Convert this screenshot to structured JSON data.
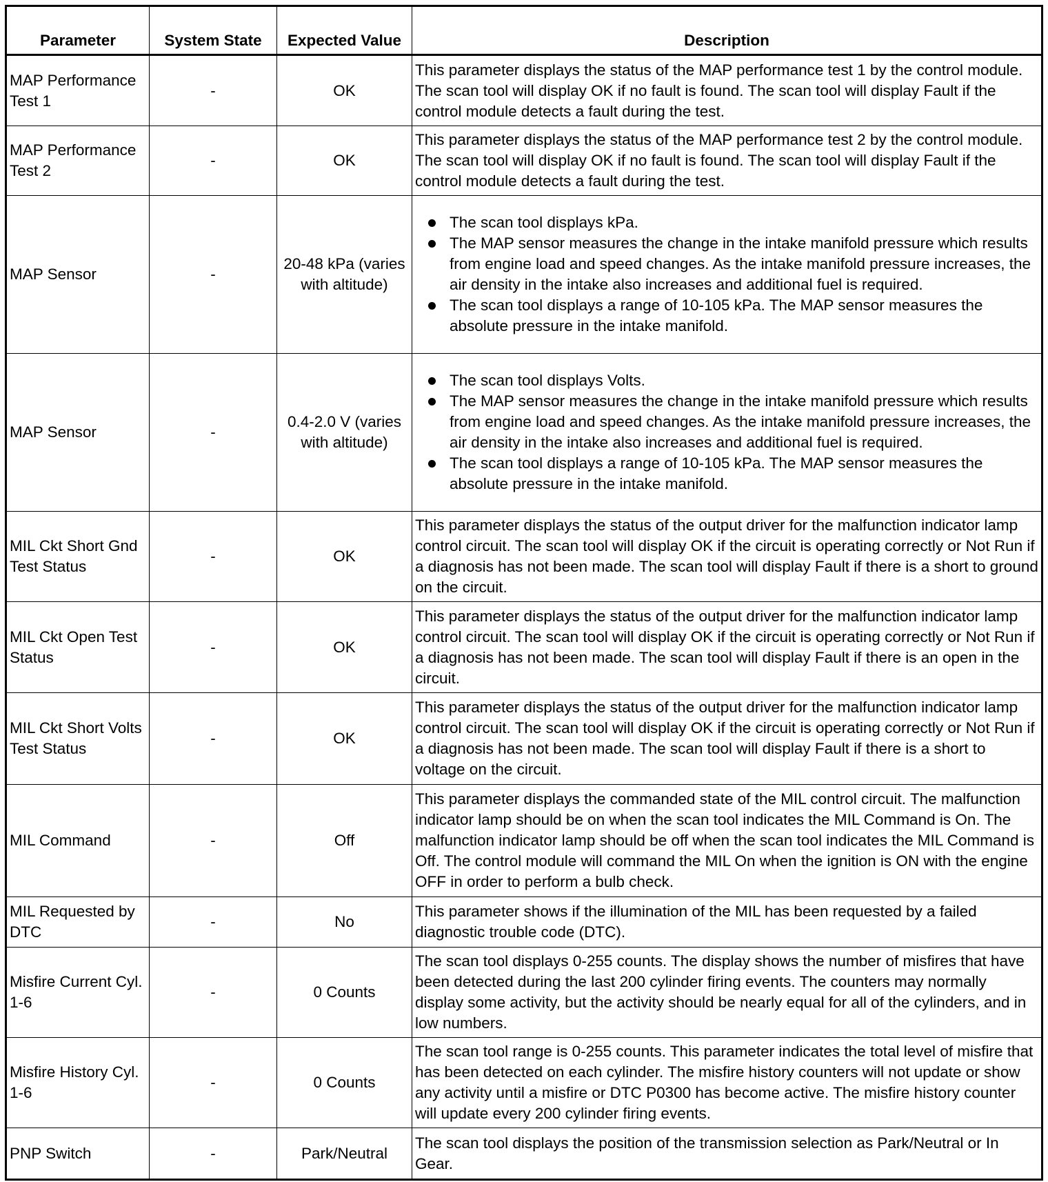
{
  "headers": [
    "Parameter",
    "System State",
    "Expected Value",
    "Description"
  ],
  "rows": [
    {
      "parameter": "MAP Performance Test 1",
      "state": "-",
      "expected": "OK",
      "description": "This parameter displays the status of the MAP performance test 1 by the control module. The scan tool will display OK if no fault is found. The scan tool will display Fault if the control module detects a fault during the test."
    },
    {
      "parameter": "MAP Performance Test 2",
      "state": "-",
      "expected": "OK",
      "description": "This parameter displays the status of the MAP performance test 2 by the control module. The scan tool will display OK if no fault is found. The scan tool will display Fault if the control module detects a fault during the test."
    },
    {
      "parameter": "MAP Sensor",
      "state": "-",
      "expected": "20-48 kPa (varies with altitude)",
      "bullets": [
        "The scan tool displays kPa.",
        "The MAP sensor measures the change in the intake manifold pressure which results from engine load and speed changes. As the intake manifold pressure increases, the air density in the intake also increases and additional fuel is required.",
        "The scan tool displays a range of 10-105 kPa. The MAP sensor measures the absolute pressure in the intake manifold."
      ]
    },
    {
      "parameter": "MAP Sensor",
      "state": "-",
      "expected": "0.4-2.0 V (varies with altitude)",
      "bullets": [
        "The scan tool displays Volts.",
        "The MAP sensor measures the change in the intake manifold pressure which results from engine load and speed changes. As the intake manifold pressure increases, the air density in the intake also increases and additional fuel is required.",
        "The scan tool displays a range of 10-105 kPa. The MAP sensor measures the absolute pressure in the intake manifold."
      ]
    },
    {
      "parameter": "MIL Ckt Short Gnd Test Status",
      "state": "-",
      "expected": "OK",
      "description": "This parameter displays the status of the output driver for the malfunction indicator lamp control circuit. The scan tool will display OK if the circuit is operating correctly or Not Run if a diagnosis has not been made. The scan tool will display Fault if there is a short to ground on the circuit."
    },
    {
      "parameter": "MIL Ckt Open Test Status",
      "state": "-",
      "expected": "OK",
      "description": "This parameter displays the status of the output driver for the malfunction indicator lamp control circuit. The scan tool will display OK if the circuit is operating correctly or Not Run if a diagnosis has not been made. The scan tool will display Fault if there is an open in the circuit."
    },
    {
      "parameter": "MIL Ckt Short Volts Test Status",
      "state": "-",
      "expected": "OK",
      "description": "This parameter displays the status of the output driver for the malfunction indicator lamp control circuit. The scan tool will display OK if the circuit is operating correctly or Not Run if a diagnosis has not been made. The scan tool will display Fault if there is a short to voltage on the circuit."
    },
    {
      "parameter": "MIL Command",
      "state": "-",
      "expected": "Off",
      "description": "This parameter displays the commanded state of the MIL control circuit. The malfunction indicator lamp should be on when the scan tool indicates the MIL Command is On. The malfunction indicator lamp should be off when the scan tool indicates the MIL Command is Off. The control module will command the MIL On when the ignition is ON with the engine OFF in order to perform a bulb check."
    },
    {
      "parameter": "MIL Requested by DTC",
      "state": "-",
      "expected": "No",
      "description": "This parameter shows if the illumination of the MIL has been requested by a failed diagnostic trouble code (DTC)."
    },
    {
      "parameter": "Misfire Current Cyl. 1-6",
      "state": "-",
      "expected": "0 Counts",
      "description": "The scan tool displays 0-255 counts. The display shows the number of misfires that have been detected during the last 200 cylinder firing events. The counters may normally display some activity, but the activity should be nearly equal for all of the cylinders, and in low numbers."
    },
    {
      "parameter": "Misfire History Cyl. 1-6",
      "state": "-",
      "expected": "0 Counts",
      "description": "The scan tool range is 0-255 counts. This parameter indicates the total level of misfire that has been detected on each cylinder. The misfire history counters will not update or show any activity until a misfire or DTC P0300 has become active. The misfire history counter will update every 200 cylinder firing events."
    },
    {
      "parameter": "PNP Switch",
      "state": "-",
      "expected": "Park/Neutral",
      "description": "The scan tool displays the position of the transmission selection as Park/Neutral or In Gear."
    }
  ]
}
